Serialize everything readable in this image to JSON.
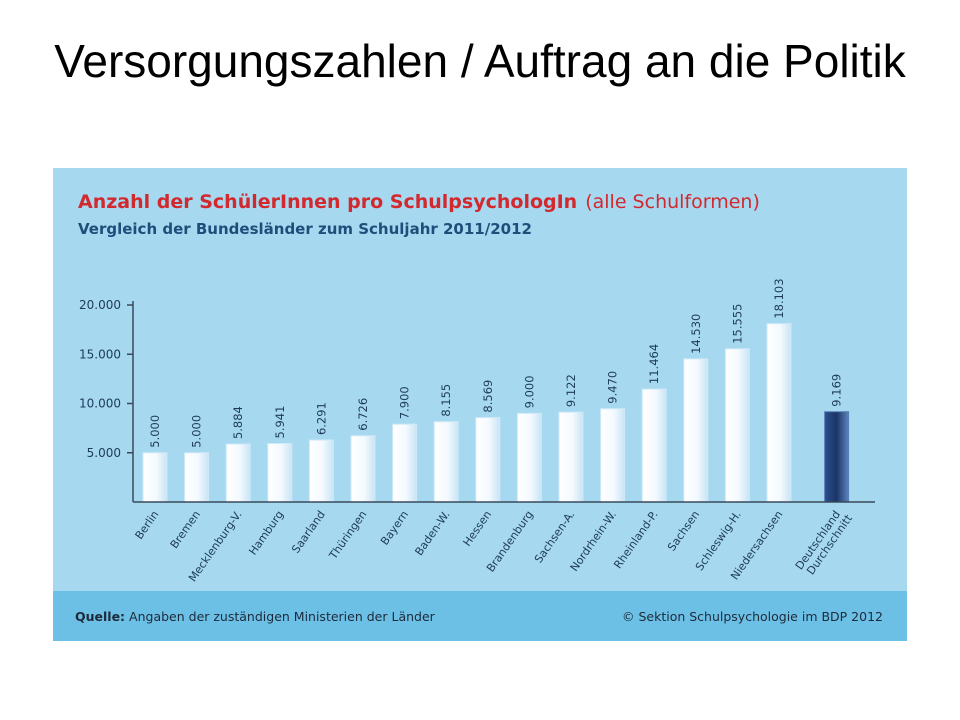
{
  "slide": {
    "title": "Versorgungszahlen / Auftrag an die Politik"
  },
  "chart_data": {
    "type": "bar",
    "title_bold": "Anzahl der SchülerInnen pro SchulpsychologIn",
    "title_suffix": "(alle Schulformen)",
    "subtitle": "Vergleich der Bundesländer zum Schuljahr 2011/2012",
    "ylim": [
      0,
      20000
    ],
    "yticks": [
      5000,
      10000,
      15000,
      20000
    ],
    "ytick_labels": [
      "5.000",
      "10.000",
      "15.000",
      "20.000"
    ],
    "grid": false,
    "categories": [
      "Berlin",
      "Bremen",
      "Mecklenburg-V.",
      "Hamburg",
      "Saarland",
      "Thüringen",
      "Bayern",
      "Baden-W.",
      "Hessen",
      "Brandenburg",
      "Sachsen-A.",
      "Nordrhein-W.",
      "Rheinland-P.",
      "Sachsen",
      "Schleswig-H.",
      "Niedersachsen"
    ],
    "values": [
      5000,
      5000,
      5884,
      5941,
      6291,
      6726,
      7900,
      8155,
      8569,
      9000,
      9122,
      9470,
      11464,
      14530,
      15555,
      18103
    ],
    "value_labels": [
      "5.000",
      "5.000",
      "5.884",
      "5.941",
      "6.291",
      "6.726",
      "7.900",
      "8.155",
      "8.569",
      "9.000",
      "9.122",
      "9.470",
      "11.464",
      "14.530",
      "15.555",
      "18.103"
    ],
    "average": {
      "label_lines": [
        "Deutschland",
        "Durchschnitt"
      ],
      "value": 9169,
      "value_label": "9.169"
    },
    "colors": {
      "panel_bg": "#a6d8ef",
      "footer_bg": "#6cc0e6",
      "title_red": "#d2282e",
      "subtitle": "#1e4e7a",
      "label_text": "#1e3a5c",
      "bar_light": "#ffffff",
      "bar_light_edge": "#cfe9f7",
      "bar_dark": "#1f3f78",
      "bar_dark_edge": "#5a7fb8",
      "axis": "#3a4a5a"
    }
  },
  "footer": {
    "source_label": "Quelle:",
    "source_text": "Angaben der zuständigen Ministerien der Länder",
    "copyright": "© Sektion Schulpsychologie im BDP 2012"
  }
}
